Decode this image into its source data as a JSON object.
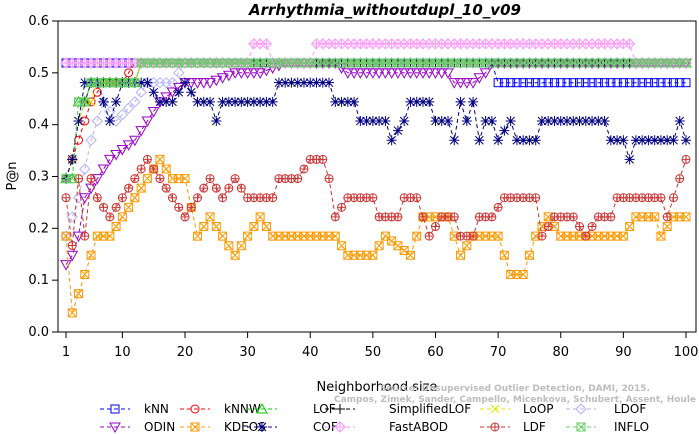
{
  "chart_data": {
    "type": "line",
    "title": "Arrhythmia_withoutdupl_10_v09",
    "xlabel": "Neighborhood size",
    "ylabel": "P@n",
    "xlim": [
      1,
      100
    ],
    "ylim": [
      0,
      0.6
    ],
    "xticks": [
      1,
      10,
      20,
      30,
      40,
      50,
      60,
      70,
      80,
      90,
      100
    ],
    "yticks": [
      0.0,
      0.1,
      0.2,
      0.3,
      0.4,
      0.5,
      0.6
    ],
    "grid": false,
    "legend_position": "bottom",
    "watermark": [
      "Source: Unsupervised Outlier Detection, DAMI, 2015.",
      "Campos, Zimek, Sander, Campello, Micenkova, Schubert, Assent, Houle"
    ],
    "series": [
      {
        "name": "kNN",
        "color": "#0000ff",
        "marker": "square",
        "points": [
          [
            1,
            0.519
          ],
          [
            69,
            0.519
          ],
          [
            70,
            0.481
          ],
          [
            100,
            0.481
          ]
        ]
      },
      {
        "name": "kNNW",
        "color": "#ff0000",
        "marker": "circle",
        "points": [
          [
            1,
            0.296
          ],
          [
            3,
            0.37
          ],
          [
            5,
            0.444
          ],
          [
            7,
            0.481
          ],
          [
            10,
            0.481
          ],
          [
            12,
            0.519
          ],
          [
            100,
            0.519
          ]
        ]
      },
      {
        "name": "LOF",
        "color": "#00cc00",
        "marker": "triangle",
        "points": [
          [
            1,
            0.296
          ],
          [
            2,
            0.296
          ],
          [
            3,
            0.444
          ],
          [
            4,
            0.444
          ],
          [
            5,
            0.481
          ],
          [
            12,
            0.481
          ],
          [
            13,
            0.519
          ],
          [
            100,
            0.519
          ]
        ]
      },
      {
        "name": "SimplifiedLOF",
        "color": "#000000",
        "marker": "plus",
        "points": [
          [
            1,
            0.296
          ],
          [
            2,
            0.333
          ],
          [
            3,
            0.407
          ],
          [
            4,
            0.444
          ],
          [
            5,
            0.481
          ],
          [
            12,
            0.481
          ],
          [
            13,
            0.519
          ],
          [
            100,
            0.519
          ]
        ]
      },
      {
        "name": "LoOP",
        "color": "#e6e600",
        "marker": "cross",
        "points": [
          [
            1,
            0.296
          ],
          [
            2,
            0.333
          ],
          [
            3,
            0.407
          ],
          [
            4,
            0.444
          ],
          [
            5,
            0.444
          ],
          [
            6,
            0.481
          ],
          [
            12,
            0.481
          ],
          [
            13,
            0.519
          ],
          [
            100,
            0.519
          ]
        ]
      },
      {
        "name": "LDOF",
        "color": "#b3b3ff",
        "marker": "diamond",
        "points": [
          [
            1,
            0.185
          ],
          [
            3,
            0.259
          ],
          [
            5,
            0.37
          ],
          [
            7,
            0.444
          ],
          [
            9,
            0.407
          ],
          [
            12,
            0.444
          ],
          [
            14,
            0.481
          ],
          [
            18,
            0.481
          ],
          [
            20,
            0.519
          ],
          [
            100,
            0.519
          ]
        ]
      },
      {
        "name": "ODIN",
        "color": "#9900cc",
        "marker": "triangle-down",
        "points": [
          [
            1,
            0.13
          ],
          [
            2,
            0.148
          ],
          [
            3,
            0.185
          ],
          [
            4,
            0.259
          ],
          [
            6,
            0.296
          ],
          [
            8,
            0.333
          ],
          [
            10,
            0.352
          ],
          [
            12,
            0.37
          ],
          [
            14,
            0.407
          ],
          [
            16,
            0.444
          ],
          [
            18,
            0.463
          ],
          [
            20,
            0.481
          ],
          [
            24,
            0.481
          ],
          [
            28,
            0.5
          ],
          [
            32,
            0.5
          ],
          [
            36,
            0.519
          ],
          [
            44,
            0.519
          ],
          [
            46,
            0.5
          ],
          [
            62,
            0.5
          ],
          [
            63,
            0.481
          ],
          [
            66,
            0.481
          ],
          [
            68,
            0.5
          ],
          [
            69,
            0.519
          ],
          [
            100,
            0.519
          ]
        ]
      },
      {
        "name": "KDEOS",
        "color": "#ff9900",
        "marker": "square-x",
        "points": [
          [
            1,
            0.185
          ],
          [
            2,
            0.037
          ],
          [
            3,
            0.074
          ],
          [
            4,
            0.111
          ],
          [
            5,
            0.148
          ],
          [
            6,
            0.185
          ],
          [
            8,
            0.185
          ],
          [
            10,
            0.222
          ],
          [
            12,
            0.259
          ],
          [
            14,
            0.296
          ],
          [
            16,
            0.333
          ],
          [
            18,
            0.296
          ],
          [
            20,
            0.296
          ],
          [
            22,
            0.185
          ],
          [
            24,
            0.222
          ],
          [
            26,
            0.185
          ],
          [
            28,
            0.148
          ],
          [
            30,
            0.185
          ],
          [
            32,
            0.222
          ],
          [
            34,
            0.185
          ],
          [
            38,
            0.185
          ],
          [
            44,
            0.185
          ],
          [
            46,
            0.148
          ],
          [
            50,
            0.148
          ],
          [
            52,
            0.185
          ],
          [
            56,
            0.148
          ],
          [
            58,
            0.222
          ],
          [
            62,
            0.222
          ],
          [
            64,
            0.148
          ],
          [
            66,
            0.185
          ],
          [
            68,
            0.185
          ],
          [
            70,
            0.185
          ],
          [
            72,
            0.111
          ],
          [
            74,
            0.111
          ],
          [
            76,
            0.185
          ],
          [
            78,
            0.222
          ],
          [
            80,
            0.185
          ],
          [
            84,
            0.185
          ],
          [
            90,
            0.185
          ],
          [
            92,
            0.222
          ],
          [
            95,
            0.222
          ],
          [
            96,
            0.185
          ],
          [
            98,
            0.222
          ],
          [
            100,
            0.222
          ]
        ]
      },
      {
        "name": "COF",
        "color": "#000080",
        "marker": "star",
        "points": [
          [
            1,
            0.296
          ],
          [
            2,
            0.333
          ],
          [
            3,
            0.407
          ],
          [
            4,
            0.481
          ],
          [
            6,
            0.481
          ],
          [
            8,
            0.407
          ],
          [
            9,
            0.444
          ],
          [
            10,
            0.481
          ],
          [
            14,
            0.481
          ],
          [
            16,
            0.444
          ],
          [
            18,
            0.444
          ],
          [
            20,
            0.481
          ],
          [
            22,
            0.444
          ],
          [
            24,
            0.444
          ],
          [
            25,
            0.407
          ],
          [
            26,
            0.444
          ],
          [
            34,
            0.444
          ],
          [
            35,
            0.481
          ],
          [
            41,
            0.481
          ],
          [
            43,
            0.481
          ],
          [
            44,
            0.444
          ],
          [
            47,
            0.444
          ],
          [
            48,
            0.407
          ],
          [
            52,
            0.407
          ],
          [
            53,
            0.37
          ],
          [
            55,
            0.407
          ],
          [
            56,
            0.444
          ],
          [
            59,
            0.444
          ],
          [
            60,
            0.407
          ],
          [
            62,
            0.407
          ],
          [
            63,
            0.37
          ],
          [
            64,
            0.444
          ],
          [
            65,
            0.407
          ],
          [
            66,
            0.444
          ],
          [
            67,
            0.37
          ],
          [
            68,
            0.407
          ],
          [
            69,
            0.407
          ],
          [
            70,
            0.37
          ],
          [
            72,
            0.407
          ],
          [
            73,
            0.37
          ],
          [
            76,
            0.37
          ],
          [
            77,
            0.407
          ],
          [
            87,
            0.407
          ],
          [
            88,
            0.37
          ],
          [
            90,
            0.37
          ],
          [
            91,
            0.333
          ],
          [
            92,
            0.37
          ],
          [
            98,
            0.37
          ],
          [
            99,
            0.407
          ],
          [
            100,
            0.37
          ]
        ]
      },
      {
        "name": "FastABOD",
        "color": "#ff99ff",
        "marker": "diamond-plus",
        "points": [
          [
            1,
            0.519
          ],
          [
            30,
            0.519
          ],
          [
            31,
            0.556
          ],
          [
            33,
            0.556
          ],
          [
            34,
            0.519
          ],
          [
            40,
            0.519
          ],
          [
            41,
            0.556
          ],
          [
            91,
            0.556
          ],
          [
            92,
            0.519
          ],
          [
            100,
            0.519
          ]
        ]
      },
      {
        "name": "LDF",
        "color": "#cc3333",
        "marker": "circle-plus",
        "points": [
          [
            1,
            0.259
          ],
          [
            2,
            0.167
          ],
          [
            3,
            0.296
          ],
          [
            4,
            0.185
          ],
          [
            5,
            0.296
          ],
          [
            6,
            0.259
          ],
          [
            8,
            0.222
          ],
          [
            10,
            0.259
          ],
          [
            12,
            0.296
          ],
          [
            14,
            0.333
          ],
          [
            16,
            0.296
          ],
          [
            18,
            0.259
          ],
          [
            20,
            0.222
          ],
          [
            22,
            0.259
          ],
          [
            24,
            0.296
          ],
          [
            26,
            0.259
          ],
          [
            28,
            0.296
          ],
          [
            30,
            0.259
          ],
          [
            32,
            0.259
          ],
          [
            34,
            0.259
          ],
          [
            35,
            0.296
          ],
          [
            38,
            0.296
          ],
          [
            40,
            0.333
          ],
          [
            42,
            0.333
          ],
          [
            43,
            0.296
          ],
          [
            44,
            0.222
          ],
          [
            46,
            0.259
          ],
          [
            50,
            0.259
          ],
          [
            51,
            0.222
          ],
          [
            54,
            0.222
          ],
          [
            55,
            0.259
          ],
          [
            57,
            0.259
          ],
          [
            59,
            0.185
          ],
          [
            61,
            0.222
          ],
          [
            63,
            0.222
          ],
          [
            64,
            0.185
          ],
          [
            66,
            0.185
          ],
          [
            67,
            0.222
          ],
          [
            69,
            0.222
          ],
          [
            71,
            0.259
          ],
          [
            76,
            0.259
          ],
          [
            77,
            0.185
          ],
          [
            79,
            0.222
          ],
          [
            82,
            0.222
          ],
          [
            84,
            0.185
          ],
          [
            86,
            0.222
          ],
          [
            88,
            0.222
          ],
          [
            89,
            0.259
          ],
          [
            96,
            0.259
          ],
          [
            97,
            0.222
          ],
          [
            98,
            0.259
          ],
          [
            99,
            0.296
          ],
          [
            100,
            0.333
          ]
        ]
      },
      {
        "name": "INFLO",
        "color": "#66cc66",
        "marker": "square-x",
        "points": [
          [
            1,
            0.296
          ],
          [
            2,
            0.296
          ],
          [
            3,
            0.444
          ],
          [
            4,
            0.444
          ],
          [
            5,
            0.481
          ],
          [
            12,
            0.481
          ],
          [
            13,
            0.519
          ],
          [
            100,
            0.519
          ]
        ]
      }
    ]
  }
}
